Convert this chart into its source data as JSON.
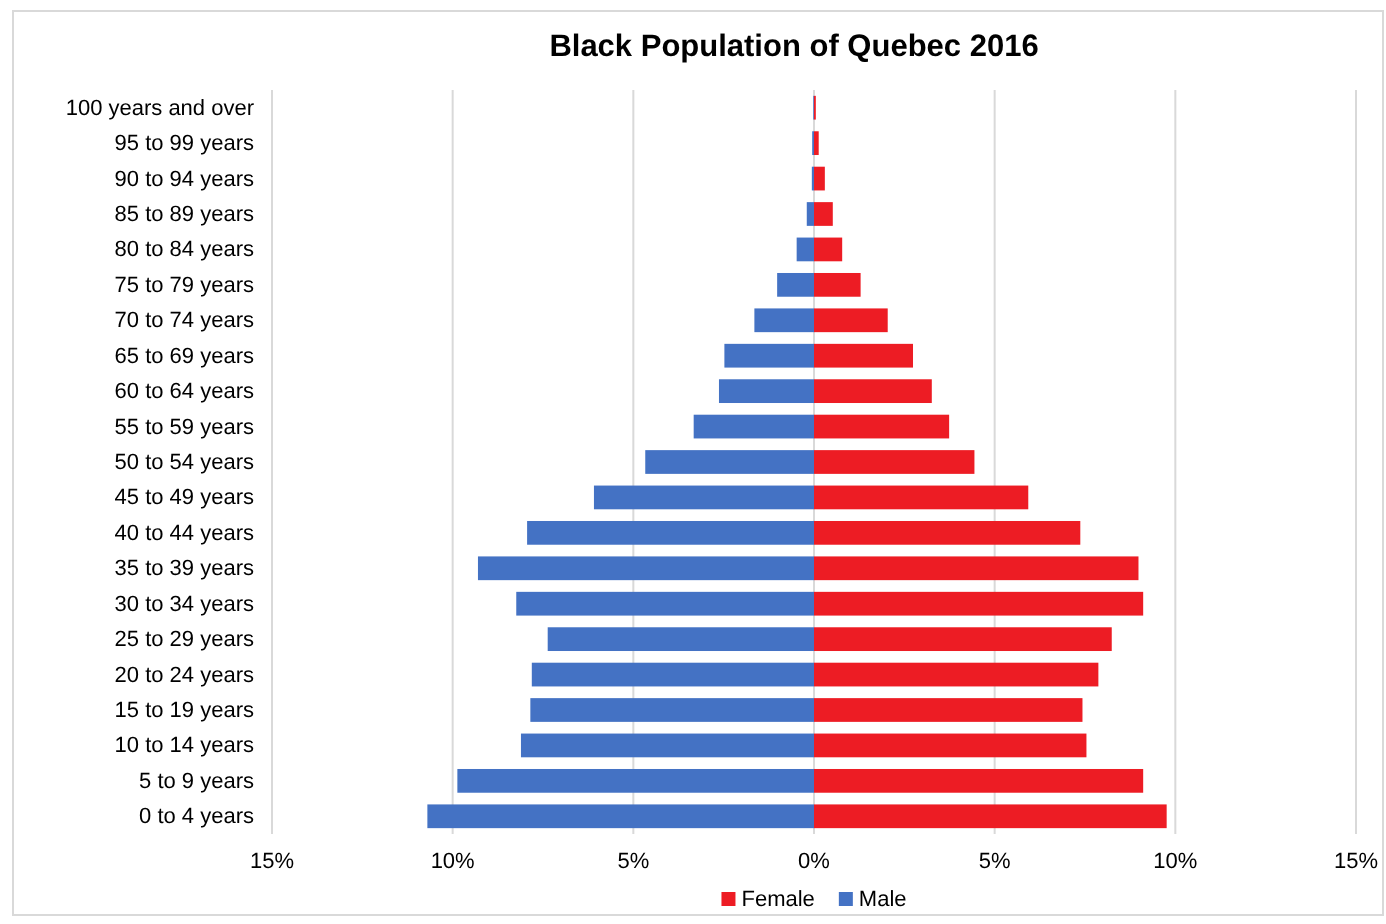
{
  "chart_data": {
    "type": "bar",
    "orientation": "horizontal",
    "stacked": true,
    "title": "Black Population of Quebec 2016",
    "categories": [
      "100 years and over",
      "95 to 99 years",
      "90 to 94 years",
      "85 to 89 years",
      "80 to 84 years",
      "75 to 79 years",
      "70 to 74 years",
      "65 to 69 years",
      "60 to 64 years",
      "55 to 59 years",
      "50 to 54 years",
      "45 to 49 years",
      "40 to 44 years",
      "35 to 39 years",
      "30 to 34 years",
      "25 to 29 years",
      "20 to 24 years",
      "15 to 19 years",
      "10 to 14 years",
      "5 to 9 years",
      "0 to 4 years"
    ],
    "series": [
      {
        "name": "Female",
        "color": "#ed1c24",
        "values": [
          0.05,
          0.13,
          0.3,
          0.52,
          0.78,
          1.29,
          2.04,
          2.74,
          3.26,
          3.74,
          4.44,
          5.93,
          7.37,
          8.98,
          9.11,
          8.24,
          7.87,
          7.43,
          7.54,
          9.11,
          9.76
        ]
      },
      {
        "name": "Male",
        "color": "#4472c4",
        "values": [
          -0.02,
          -0.05,
          -0.06,
          -0.2,
          -0.48,
          -1.02,
          -1.65,
          -2.48,
          -2.63,
          -3.33,
          -4.67,
          -6.09,
          -7.94,
          -9.3,
          -8.24,
          -7.37,
          -7.81,
          -7.85,
          -8.11,
          -9.87,
          -10.7
        ]
      }
    ],
    "xlim": [
      -15,
      15
    ],
    "xticks": [
      {
        "value": -15,
        "label": "15%"
      },
      {
        "value": -10,
        "label": "10%"
      },
      {
        "value": -5,
        "label": "5%"
      },
      {
        "value": 0,
        "label": "0%"
      },
      {
        "value": 5,
        "label": "5%"
      },
      {
        "value": 10,
        "label": "10%"
      },
      {
        "value": 15,
        "label": "15%"
      }
    ],
    "grid": "x",
    "legend": "bottom"
  }
}
